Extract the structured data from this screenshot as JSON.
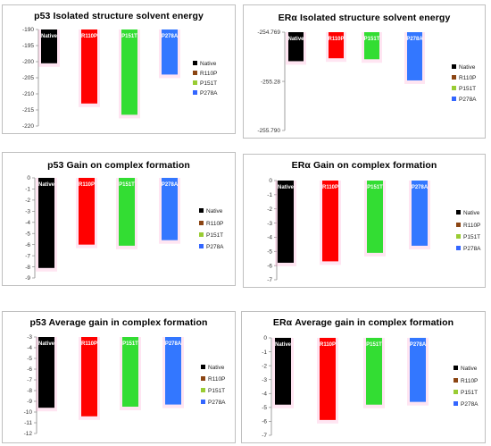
{
  "legend": [
    "Native",
    "R110P",
    "P151T",
    "P278A"
  ],
  "colors": {
    "Native": "#000000",
    "R110P": "#ff0000",
    "P151T": "#33dd33",
    "P278A": "#3377ff",
    "R110P_legend": "#8b4513",
    "P151T_legend": "#99cc33",
    "P278A_legend": "#3366ff",
    "glow": "#ff99cc"
  },
  "chart_data": [
    {
      "type": "bar",
      "title": "p53 Isolated structure solvent energy",
      "categories": [
        "Native",
        "R110P",
        "P151T",
        "P278A"
      ],
      "values": [
        -200.5,
        -213,
        -216.5,
        -204
      ],
      "ylim": [
        -220,
        -190
      ],
      "yticks": [
        "-190",
        "-195",
        "-200",
        "-205",
        "-210",
        "-215",
        "-220"
      ],
      "xlabel": "",
      "ylabel": "",
      "legend_position": "right",
      "grid": false
    },
    {
      "type": "bar",
      "title": "ERα Isolated structure solvent energy",
      "categories": [
        "Native",
        "R110P",
        "P151T",
        "P278A"
      ],
      "values": [
        -255.07,
        -255.04,
        -255.05,
        -255.27
      ],
      "ylim": [
        -255.79,
        -254.769
      ],
      "yticks": [
        "-254.769",
        "-255.28",
        "-255.790"
      ],
      "xlabel": "",
      "ylabel": "",
      "legend_position": "right",
      "grid": false
    },
    {
      "type": "bar",
      "title": "p53 Gain on complex formation",
      "categories": [
        "Native",
        "R110P",
        "P151T",
        "P278A"
      ],
      "values": [
        -8.1,
        -6.0,
        -6.1,
        -5.6
      ],
      "ylim": [
        -9,
        0
      ],
      "yticks": [
        "0",
        "-1",
        "-2",
        "-3",
        "-4",
        "-5",
        "-6",
        "-7",
        "-8",
        "-9"
      ],
      "xlabel": "",
      "ylabel": "",
      "legend_position": "right",
      "grid": false
    },
    {
      "type": "bar",
      "title": "ERα Gain on complex formation",
      "categories": [
        "Native",
        "R110P",
        "P151T",
        "P278A"
      ],
      "values": [
        -5.8,
        -5.7,
        -5.1,
        -4.6
      ],
      "ylim": [
        -7,
        0
      ],
      "yticks": [
        "0",
        "-1",
        "-2",
        "-3",
        "-4",
        "-5",
        "-6",
        "-7"
      ],
      "xlabel": "",
      "ylabel": "",
      "legend_position": "right",
      "grid": false
    },
    {
      "type": "bar",
      "title": "p53 Average gain in complex formation",
      "categories": [
        "Native",
        "R110P",
        "P151T",
        "P278A"
      ],
      "values": [
        -9.6,
        -10.4,
        -9.5,
        -9.3
      ],
      "ylim": [
        -12,
        -3
      ],
      "yticks": [
        "-3",
        "-4",
        "-5",
        "-6",
        "-7",
        "-8",
        "-9",
        "-10",
        "-11",
        "-12"
      ],
      "xlabel": "",
      "ylabel": "",
      "legend_position": "right",
      "grid": false
    },
    {
      "type": "bar",
      "title": "ERα Average gain in complex formation",
      "categories": [
        "Native",
        "R110P",
        "P151T",
        "P278A"
      ],
      "values": [
        -4.8,
        -5.9,
        -4.8,
        -4.6
      ],
      "ylim": [
        -7,
        0
      ],
      "yticks": [
        "0",
        "-1",
        "-2",
        "-3",
        "-4",
        "-5",
        "-6",
        "-7"
      ],
      "xlabel": "",
      "ylabel": "",
      "legend_position": "right",
      "grid": false
    }
  ]
}
